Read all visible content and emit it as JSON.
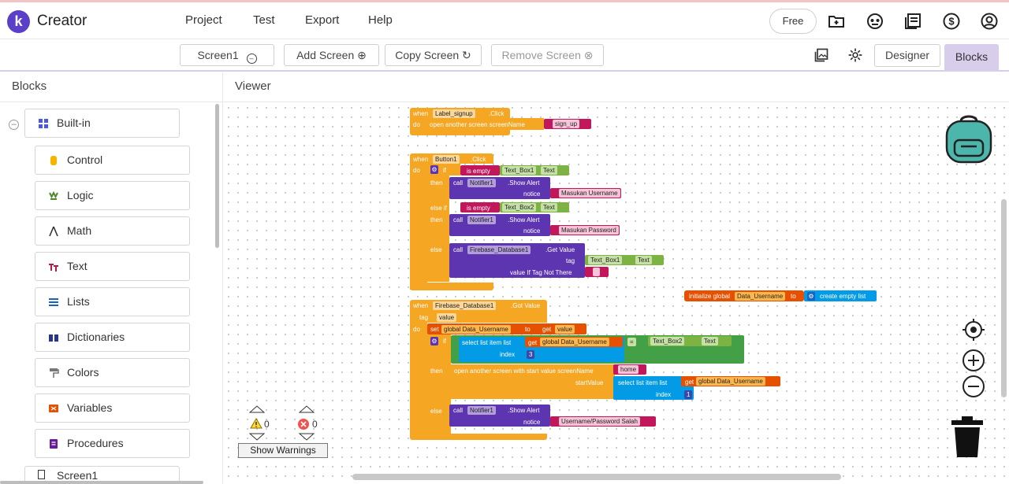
{
  "app": {
    "name": "Creator",
    "logo_letter": "k"
  },
  "menu": [
    "Project",
    "Test",
    "Export",
    "Help"
  ],
  "plan_badge": "Free",
  "toolbar": {
    "screen_selector": "Screen1",
    "add_screen": "Add Screen",
    "copy_screen": "Copy Screen",
    "remove_screen": "Remove Screen",
    "designer_tab": "Designer",
    "blocks_tab": "Blocks"
  },
  "left_panel": {
    "title": "Blocks",
    "root": "Built-in",
    "categories": [
      {
        "label": "Control",
        "color": "#f4b400"
      },
      {
        "label": "Logic",
        "color": "#4a8b2c"
      },
      {
        "label": "Math",
        "color": "#3d5af1"
      },
      {
        "label": "Text",
        "color": "#b31b4a"
      },
      {
        "label": "Lists",
        "color": "#1565c0"
      },
      {
        "label": "Dictionaries",
        "color": "#283593"
      },
      {
        "label": "Colors",
        "color": "#777777"
      },
      {
        "label": "Variables",
        "color": "#e65100"
      },
      {
        "label": "Procedures",
        "color": "#6a1b9a"
      }
    ],
    "next_item": "Screen1"
  },
  "viewer": {
    "title": "Viewer",
    "warnings_count": "0",
    "errors_count": "0",
    "show_warnings": "Show Warnings"
  },
  "blocks": {
    "b1": {
      "when": "when",
      "comp": "Label_signup",
      "event": ".Click",
      "do": "do",
      "action": "open another screen  screenName",
      "value": "sign_up"
    },
    "b2": {
      "when": "when",
      "comp": "Button1",
      "event": ".Click",
      "do": "do",
      "if": "if",
      "is_empty": "is empty",
      "tb1": "Text_Box1",
      "text": "Text",
      "then": "then",
      "call": "call",
      "notifier": "Notifier1",
      "show_alert": ".Show Alert",
      "notice": "notice",
      "msg1": "Masukan Username",
      "else_if": "else if",
      "tb2": "Text_Box2",
      "msg2": "Masukan Password",
      "else": "else",
      "fdb": "Firebase_Database1",
      "get_value": ".Get Value",
      "tag": "tag",
      "value_if": "value If Tag Not There",
      "empty_str": " "
    },
    "b3": {
      "init": "initialize global",
      "var": "Data_Username",
      "to": "to",
      "create_list": "create empty list"
    },
    "b4": {
      "when": "when",
      "comp": "Firebase_Database1",
      "event": ".Got Value",
      "tag": "tag",
      "value": "value",
      "do": "do",
      "set": "set",
      "gvar": "global Data_Username",
      "to": "to",
      "get": "get",
      "if": "if",
      "select": "select list item  list",
      "index": "index",
      "idx1": "3",
      "eq": "=",
      "tb2": "Text_Box2",
      "text": "Text",
      "then": "then",
      "open_start": "open another screen with start value  screenName",
      "home": "home",
      "start_value": "startValue",
      "idx2": "1",
      "else": "else",
      "call": "call",
      "notifier": "Notifier1",
      "show_alert": ".Show Alert",
      "notice": "notice",
      "msg": "Username/Password Salah"
    }
  }
}
